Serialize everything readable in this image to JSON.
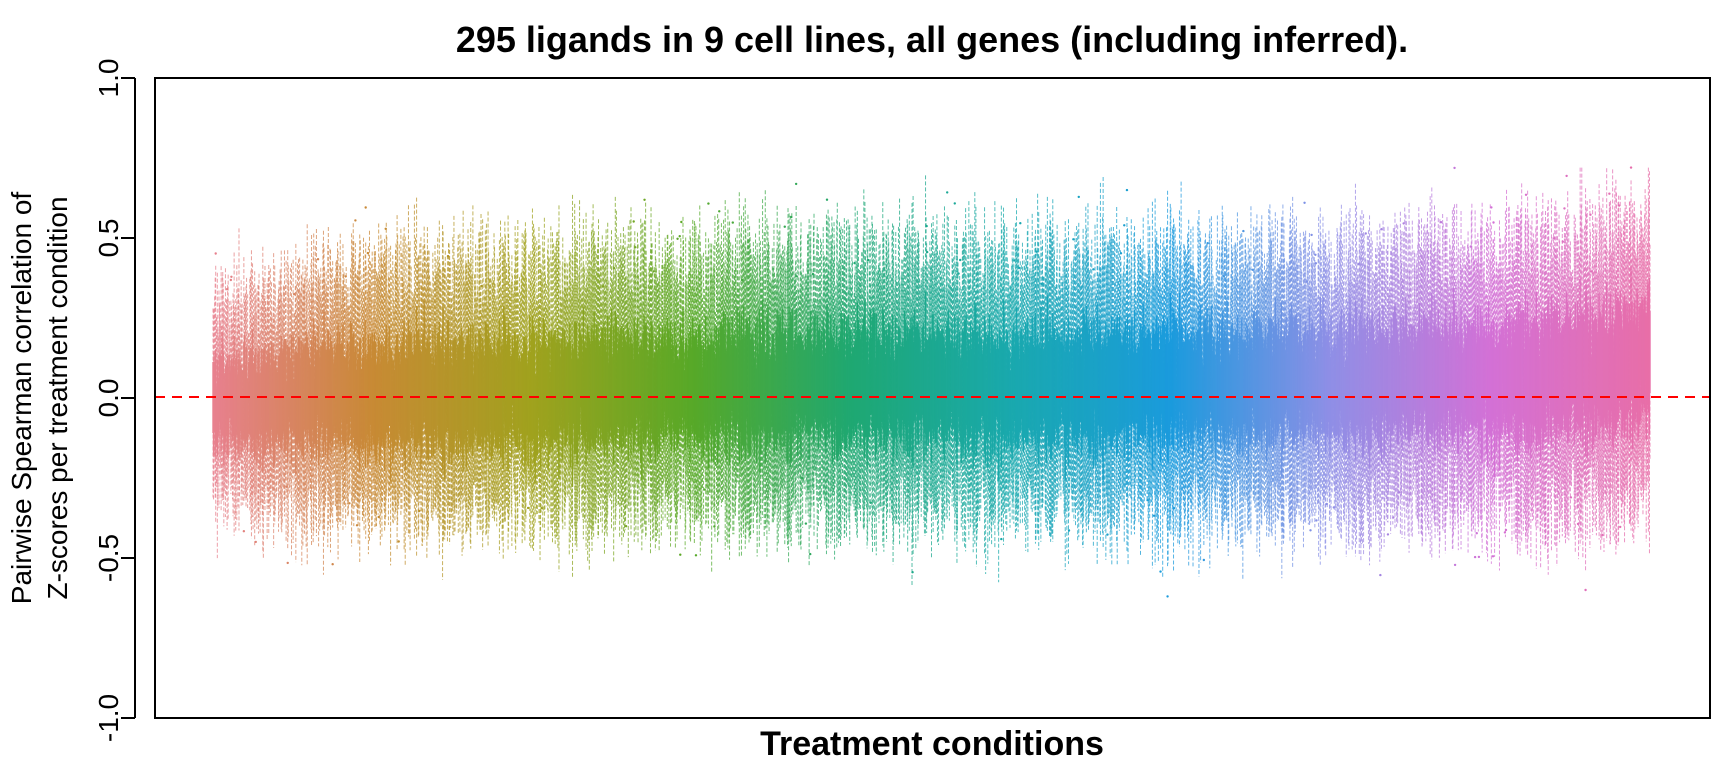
{
  "chart_data": {
    "type": "boxplot",
    "title": "295 ligands in 9 cell lines, all genes (including inferred).",
    "xlabel": "Treatment conditions",
    "ylabel_lines": [
      "Pairwise Spearman correlation of",
      "Z-scores per treatment condition"
    ],
    "ylim": [
      -1.0,
      1.0
    ],
    "yticks": [
      -1.0,
      -0.5,
      0.0,
      0.5,
      1.0
    ],
    "ytick_labels": [
      "-1.0",
      "-0.5",
      "0.0",
      "0.5",
      "1.0"
    ],
    "reference_line": {
      "y": 0.0,
      "color": "#ff0000",
      "style": "dashed"
    },
    "n_conditions": 2655,
    "grid": false,
    "legend": "none",
    "color_gradient": [
      "#E8808F",
      "#C88A35",
      "#A0A21E",
      "#58A928",
      "#1FA872",
      "#1AA9AE",
      "#1B9BDD",
      "#8F8FE6",
      "#D371D6",
      "#E86FA8"
    ],
    "envelope_x": [
      0,
      0.05,
      0.1,
      0.2,
      0.3,
      0.4,
      0.5,
      0.6,
      0.7,
      0.8,
      0.9,
      0.95,
      1
    ],
    "envelope_whisker_high": [
      0.35,
      0.4,
      0.48,
      0.5,
      0.5,
      0.52,
      0.52,
      0.52,
      0.5,
      0.52,
      0.55,
      0.58,
      0.62
    ],
    "envelope_whisker_low": [
      -0.35,
      -0.4,
      -0.42,
      -0.42,
      -0.4,
      -0.42,
      -0.42,
      -0.42,
      -0.42,
      -0.42,
      -0.42,
      -0.45,
      -0.4
    ],
    "envelope_median": [
      -0.02,
      0.0,
      0.0,
      0.0,
      0.02,
      0.03,
      0.03,
      0.03,
      0.04,
      0.05,
      0.06,
      0.08,
      0.12
    ],
    "notable_values": {
      "max": 0.72,
      "min": -0.62
    }
  }
}
